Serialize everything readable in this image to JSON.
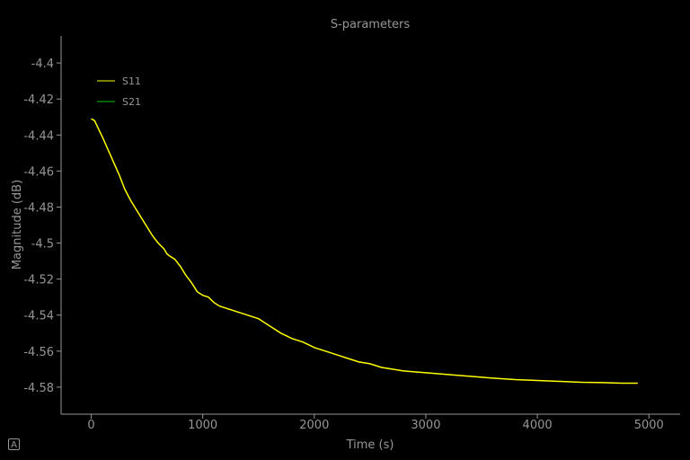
{
  "chart_data": {
    "type": "line",
    "title": "S-parameters",
    "xlabel": "Time (s)",
    "ylabel": "Magnitude (dB)",
    "xlim": [
      -270,
      5280
    ],
    "ylim": [
      -4.595,
      -4.385
    ],
    "xticks": [
      0,
      1000,
      2000,
      3000,
      4000,
      5000
    ],
    "yticks": [
      -4.4,
      -4.42,
      -4.44,
      -4.46,
      -4.48,
      -4.5,
      -4.52,
      -4.54,
      -4.56,
      -4.58
    ],
    "grid": false,
    "legend_position": "top-left",
    "series": [
      {
        "name": "S11",
        "color": "#ffff00",
        "x": [
          0,
          30,
          60,
          100,
          150,
          200,
          250,
          300,
          350,
          400,
          450,
          500,
          550,
          600,
          650,
          680,
          700,
          750,
          800,
          850,
          900,
          950,
          1000,
          1050,
          1100,
          1150,
          1200,
          1250,
          1300,
          1400,
          1500,
          1550,
          1600,
          1700,
          1800,
          1900,
          2000,
          2100,
          2200,
          2300,
          2400,
          2500,
          2600,
          2700,
          2800,
          2900,
          3000,
          3200,
          3400,
          3600,
          3800,
          4000,
          4200,
          4400,
          4600,
          4750,
          4900
        ],
        "y": [
          -4.431,
          -4.432,
          -4.436,
          -4.441,
          -4.448,
          -4.455,
          -4.462,
          -4.47,
          -4.476,
          -4.481,
          -4.486,
          -4.491,
          -4.496,
          -4.5,
          -4.503,
          -4.506,
          -4.507,
          -4.509,
          -4.513,
          -4.518,
          -4.522,
          -4.527,
          -4.529,
          -4.53,
          -4.533,
          -4.535,
          -4.536,
          -4.537,
          -4.538,
          -4.54,
          -4.542,
          -4.544,
          -4.546,
          -4.55,
          -4.553,
          -4.555,
          -4.558,
          -4.56,
          -4.562,
          -4.564,
          -4.566,
          -4.567,
          -4.569,
          -4.57,
          -4.571,
          -4.5715,
          -4.572,
          -4.573,
          -4.574,
          -4.575,
          -4.5758,
          -4.5763,
          -4.5768,
          -4.5773,
          -4.5775,
          -4.5778,
          -4.5778
        ]
      },
      {
        "name": "S21",
        "color": "#00c800",
        "x": [],
        "y": []
      }
    ]
  },
  "ui": {
    "auto_button_label": "A"
  }
}
